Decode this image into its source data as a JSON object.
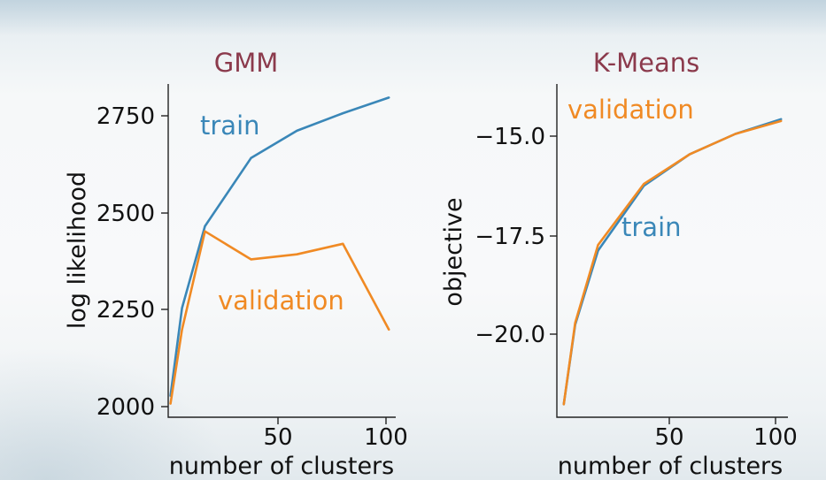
{
  "chart_data": [
    {
      "type": "line",
      "title": "GMM",
      "xlabel": "number of clusters",
      "ylabel": "log likelihood",
      "xlim": [
        4,
        103
      ],
      "ylim": [
        1975,
        2830
      ],
      "xticks": [
        "50",
        "100"
      ],
      "yticks": [
        "2000",
        "2250",
        "2500",
        "2750"
      ],
      "series": [
        {
          "name": "train",
          "color": "#3a87b8",
          "x": [
            5,
            10,
            20,
            40,
            60,
            80,
            100
          ],
          "y": [
            2030,
            2255,
            2465,
            2640,
            2710,
            2755,
            2795
          ]
        },
        {
          "name": "validation",
          "color": "#f08a24",
          "x": [
            5,
            10,
            20,
            40,
            60,
            80,
            100
          ],
          "y": [
            2010,
            2200,
            2452,
            2380,
            2393,
            2420,
            2200
          ]
        }
      ],
      "annotations": [
        {
          "text": "train",
          "color": "#3a87b8"
        },
        {
          "text": "validation",
          "color": "#f08a24"
        }
      ],
      "grid": false
    },
    {
      "type": "line",
      "title": "K-Means",
      "xlabel": "number of clusters",
      "ylabel": "objective",
      "xlim": [
        2,
        103
      ],
      "ylim": [
        -22.1,
        -13.1
      ],
      "xticks": [
        "50",
        "100"
      ],
      "yticks": [
        "−15.0",
        "−17.5",
        "−20.0"
      ],
      "series": [
        {
          "name": "train",
          "color": "#3a87b8",
          "x": [
            5,
            10,
            20,
            40,
            60,
            80,
            100
          ],
          "y": [
            -21.75,
            -19.6,
            -17.6,
            -15.85,
            -15.0,
            -14.45,
            -14.05
          ]
        },
        {
          "name": "validation",
          "color": "#f08a24",
          "x": [
            5,
            10,
            20,
            40,
            60,
            80,
            100
          ],
          "y": [
            -21.75,
            -19.55,
            -17.45,
            -15.8,
            -15.0,
            -14.45,
            -14.1
          ]
        }
      ],
      "annotations": [
        {
          "text": "validation",
          "color": "#f08a24"
        },
        {
          "text": "train",
          "color": "#3a87b8"
        }
      ],
      "grid": false
    }
  ]
}
